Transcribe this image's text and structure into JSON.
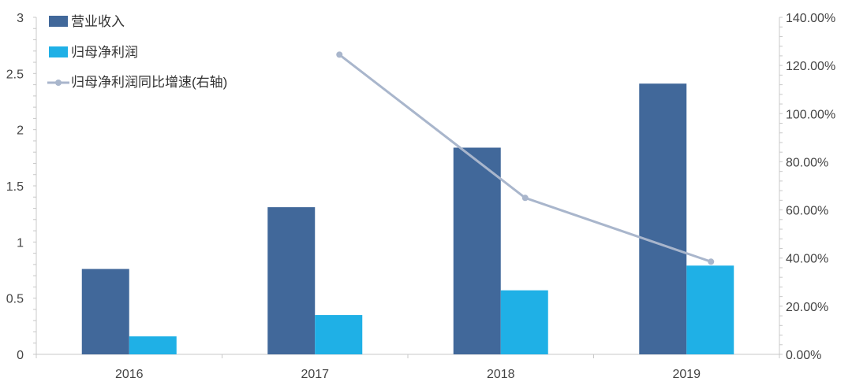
{
  "colors": {
    "revenue": "#41689a",
    "net_profit": "#1fb0e6",
    "growth_line": "#a9b6cc",
    "axis": "#c8c8c8",
    "tick_text": "#444444",
    "legend_text": "#333333"
  },
  "chart_data": {
    "type": "bar",
    "categories": [
      "2016",
      "2017",
      "2018",
      "2019"
    ],
    "series": [
      {
        "name": "营业收入",
        "kind": "bar",
        "axis": "left",
        "values": [
          0.76,
          1.31,
          1.84,
          2.41
        ]
      },
      {
        "name": "归母净利润",
        "kind": "bar",
        "axis": "left",
        "values": [
          0.16,
          0.35,
          0.57,
          0.79
        ]
      },
      {
        "name": "归母净利润同比增速(右轴)",
        "kind": "line",
        "axis": "right",
        "values": [
          null,
          1.245,
          0.65,
          0.385
        ]
      }
    ],
    "ylim_left": [
      0,
      3
    ],
    "yticks_left": [
      "0",
      "0.5",
      "1",
      "1.5",
      "2",
      "2.5",
      "3"
    ],
    "ylim_right": [
      0,
      1.4
    ],
    "yticks_right": [
      "0.00%",
      "20.00%",
      "40.00%",
      "60.00%",
      "80.00%",
      "100.00%",
      "120.00%",
      "140.00%"
    ],
    "legend_position": "top-left",
    "grid": false
  }
}
